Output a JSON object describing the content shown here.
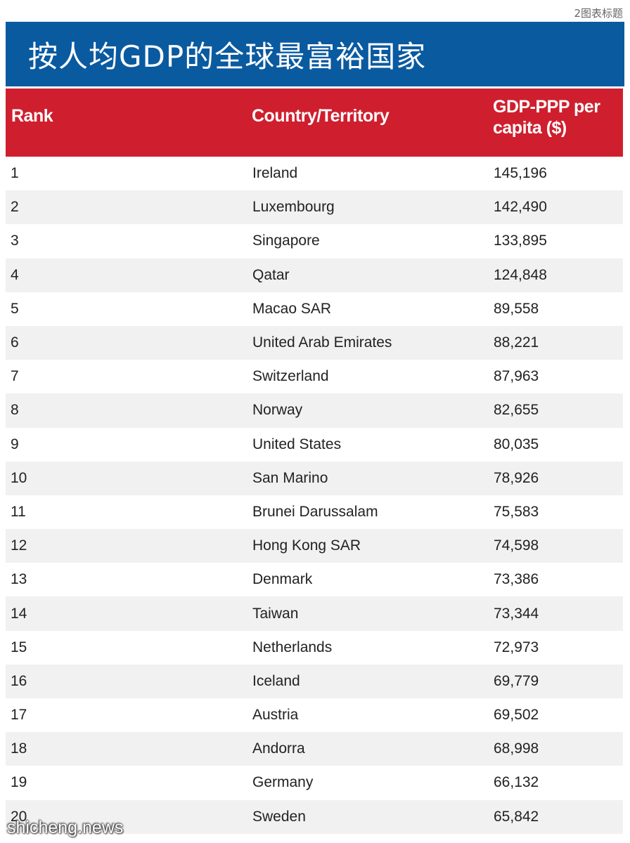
{
  "caption": "2图表标题",
  "title": "按人均GDP的全球最富裕国家",
  "watermark": "shicheng.news",
  "colors": {
    "title_bg": "#0a5aa0",
    "header_bg": "#cf1f2e",
    "stripe": "#f1f1f1"
  },
  "chart_data": {
    "type": "table",
    "columns": [
      "Rank",
      "Country/Territory",
      "GDP-PPP per capita ($)"
    ],
    "rows": [
      [
        "1",
        "Ireland",
        "145,196"
      ],
      [
        "2",
        "Luxembourg",
        "142,490"
      ],
      [
        "3",
        "Singapore",
        "133,895"
      ],
      [
        "4",
        "Qatar",
        "124,848"
      ],
      [
        "5",
        "Macao SAR",
        "89,558"
      ],
      [
        "6",
        "United Arab Emirates",
        "88,221"
      ],
      [
        "7",
        "Switzerland",
        "87,963"
      ],
      [
        "8",
        "Norway",
        "82,655"
      ],
      [
        "9",
        "United States",
        "80,035"
      ],
      [
        "10",
        "San Marino",
        "78,926"
      ],
      [
        "11",
        "Brunei Darussalam",
        "75,583"
      ],
      [
        "12",
        "Hong Kong SAR",
        "74,598"
      ],
      [
        "13",
        "Denmark",
        "73,386"
      ],
      [
        "14",
        "Taiwan",
        "73,344"
      ],
      [
        "15",
        "Netherlands",
        "72,973"
      ],
      [
        "16",
        "Iceland",
        "69,779"
      ],
      [
        "17",
        "Austria",
        "69,502"
      ],
      [
        "18",
        "Andorra",
        "68,998"
      ],
      [
        "19",
        "Germany",
        "66,132"
      ],
      [
        "20",
        "Sweden",
        "65,842"
      ]
    ]
  }
}
